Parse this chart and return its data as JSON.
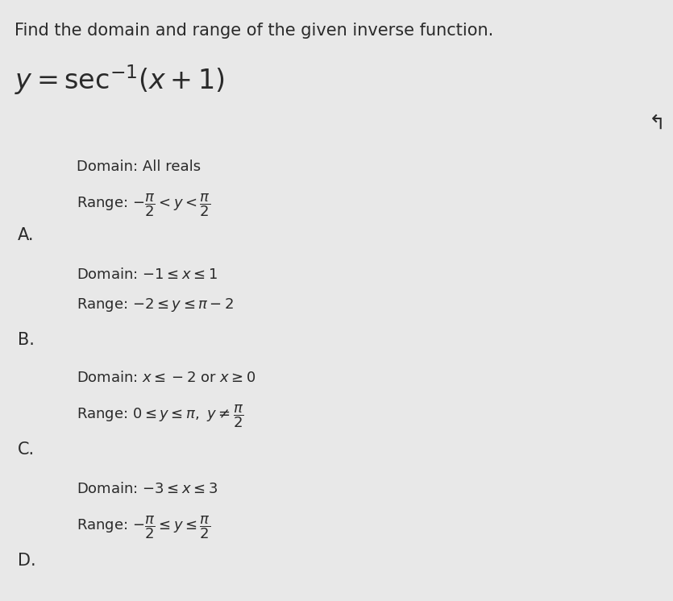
{
  "background_color": "#e8e8e8",
  "title_text": "Find the domain and range of the given inverse function.",
  "title_fontsize": 15,
  "title_color": "#1a1a1a",
  "function_text": "$y = \\mathrm{sec}^{-1}\\left(x + 1\\right)$",
  "function_fontsize": 24,
  "options": [
    {
      "label": "A.",
      "domain_text": "Domain: All reals",
      "range_text": "Range: $-\\dfrac{\\pi}{2} < y < \\dfrac{\\pi}{2}$",
      "has_domain": true
    },
    {
      "label": "B.",
      "domain_text": "Domain: $-1 \\leq x \\leq 1$",
      "range_text": "Range: $-2 \\leq y \\leq \\pi - 2$",
      "has_domain": true
    },
    {
      "label": "C.",
      "domain_text": "Domain: $x \\leq -2$ or $x \\geq 0$",
      "range_text": "Range: $0 \\leq y \\leq \\pi,\\ y \\neq \\dfrac{\\pi}{2}$",
      "has_domain": true
    },
    {
      "label": "D.",
      "domain_text": "Domain: $-3 \\leq x \\leq 3$",
      "range_text": "Range: $-\\dfrac{\\pi}{2} \\leq y \\leq \\dfrac{\\pi}{2}$",
      "has_domain": true
    }
  ],
  "label_fontsize": 15,
  "option_fontsize": 13,
  "text_color": "#2a2a2a"
}
